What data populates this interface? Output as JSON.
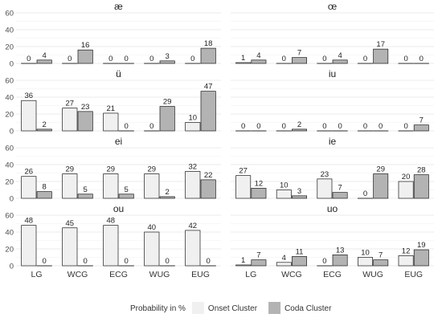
{
  "chart_data": {
    "type": "bar",
    "layout": "faceted 4x2",
    "categories": [
      "LG",
      "WCG",
      "ECG",
      "WUG",
      "EUG"
    ],
    "ylim": [
      0,
      60
    ],
    "yticks": [
      0,
      20,
      40,
      60
    ],
    "grid": true,
    "legend": {
      "position": "bottom",
      "title": "Probability in %",
      "entries": [
        {
          "name": "Onset Cluster",
          "color": "#f0f0f0"
        },
        {
          "name": "Coda Cluster",
          "color": "#b3b3b3"
        }
      ]
    },
    "panels": [
      {
        "title": "æ",
        "onset": [
          0,
          0,
          0,
          0,
          0
        ],
        "coda": [
          4,
          16,
          0,
          3,
          18
        ]
      },
      {
        "title": "œ",
        "onset": [
          1,
          0,
          0,
          0,
          0
        ],
        "coda": [
          4,
          7,
          4,
          17,
          0
        ]
      },
      {
        "title": "ü",
        "onset": [
          36,
          27,
          21,
          0,
          10
        ],
        "coda": [
          2,
          23,
          0,
          29,
          47
        ]
      },
      {
        "title": "iu",
        "onset": [
          0,
          0,
          0,
          0,
          0
        ],
        "coda": [
          0,
          2,
          0,
          0,
          7
        ]
      },
      {
        "title": "ei",
        "onset": [
          26,
          29,
          29,
          29,
          32
        ],
        "coda": [
          8,
          5,
          5,
          2,
          22
        ]
      },
      {
        "title": "ie",
        "onset": [
          27,
          10,
          23,
          0,
          20
        ],
        "coda": [
          12,
          3,
          7,
          29,
          28
        ]
      },
      {
        "title": "ou",
        "onset": [
          48,
          45,
          48,
          40,
          42
        ],
        "coda": [
          0,
          0,
          0,
          0,
          0
        ]
      },
      {
        "title": "uo",
        "onset": [
          1,
          4,
          0,
          10,
          12
        ],
        "coda": [
          7,
          11,
          13,
          7,
          19
        ]
      }
    ]
  }
}
